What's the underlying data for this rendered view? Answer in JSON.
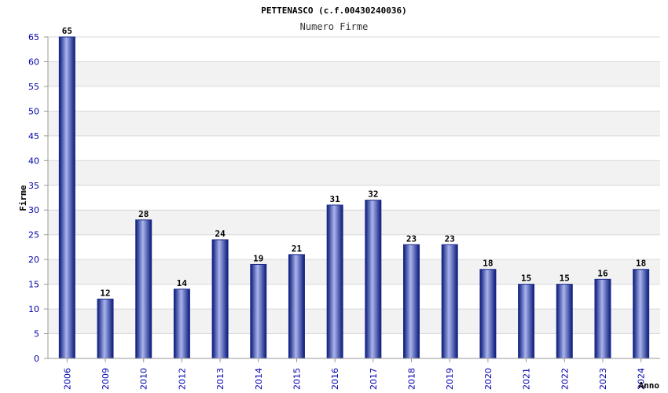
{
  "chart_data": {
    "type": "bar",
    "title": "PETTENASCO (c.f.00430240036)",
    "subtitle": "Numero Firme",
    "xlabel": "Anno",
    "ylabel": "Firme",
    "categories": [
      "2006",
      "2009",
      "2010",
      "2012",
      "2013",
      "2014",
      "2015",
      "2016",
      "2017",
      "2018",
      "2019",
      "2020",
      "2021",
      "2022",
      "2023",
      "2024"
    ],
    "values": [
      65,
      12,
      28,
      14,
      24,
      19,
      21,
      31,
      32,
      23,
      23,
      18,
      15,
      15,
      16,
      18
    ],
    "ylim": [
      0,
      65
    ],
    "yticks": [
      0,
      5,
      10,
      15,
      20,
      25,
      30,
      35,
      40,
      45,
      50,
      55,
      60,
      65
    ],
    "grid": true,
    "bar_color": "#1a2a8a",
    "tick_color": "#0000aa",
    "band_color": "#f2f2f2"
  }
}
